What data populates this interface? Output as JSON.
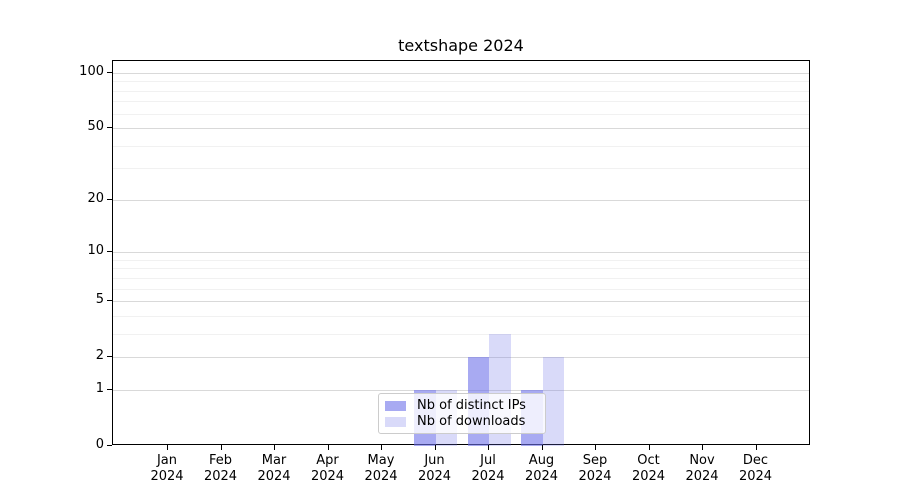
{
  "chart_data": {
    "type": "bar",
    "title": "textshape 2024",
    "categories": [
      "Jan 2024",
      "Feb 2024",
      "Mar 2024",
      "Apr 2024",
      "May 2024",
      "Jun 2024",
      "Jul 2024",
      "Aug 2024",
      "Sep 2024",
      "Oct 2024",
      "Nov 2024",
      "Dec 2024"
    ],
    "series": [
      {
        "key": "distinct-ips",
        "name": "Nb of distinct IPs",
        "color": "rgba(110,113,233,0.60)",
        "values": [
          0,
          0,
          0,
          0,
          0,
          1,
          2,
          1,
          0,
          0,
          0,
          0
        ]
      },
      {
        "key": "downloads",
        "name": "Nb of downloads",
        "color": "rgba(110,113,233,0.26)",
        "values": [
          0,
          0,
          0,
          0,
          0,
          1,
          3,
          2,
          0,
          0,
          0,
          0
        ]
      }
    ],
    "yscale": "log1p",
    "y_ticks": [
      0,
      1,
      2,
      5,
      10,
      20,
      50,
      100
    ],
    "y_minor_ticks": [
      3,
      4,
      6,
      7,
      8,
      9,
      30,
      40,
      60,
      70,
      80,
      90
    ],
    "ylim": [
      0,
      116
    ],
    "xlabel": "",
    "ylabel": "",
    "grid": true,
    "legend_position": "lower center",
    "colors": {
      "major_grid": "#d9d9d9",
      "minor_grid": "#f1f1f1",
      "axis": "#000000",
      "text": "#000000",
      "background": "#ffffff"
    }
  }
}
